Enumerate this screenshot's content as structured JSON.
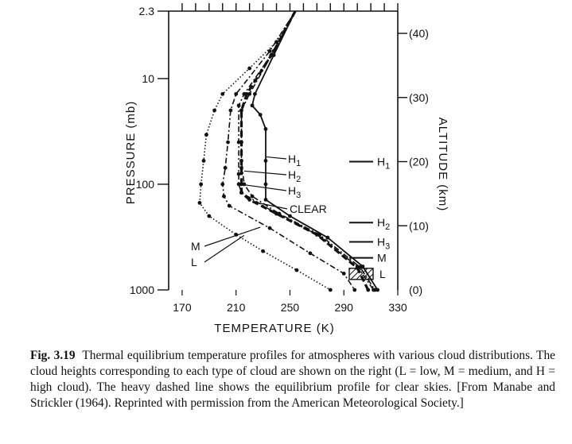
{
  "chart_data": {
    "type": "line",
    "xlabel": "TEMPERATURE (K)",
    "ylabel_left": "PRESSURE (mb)",
    "ylabel_right": "ALTITUDE (km)",
    "x_ticks": [
      "170",
      "210",
      "250",
      "290",
      "330"
    ],
    "y_left_ticks": [
      "2.3",
      "10",
      "100",
      "1000"
    ],
    "y_right_ticks": [
      "(40)",
      "(30)",
      "(20)",
      "(10)",
      "(0)"
    ],
    "xlim": [
      160,
      330
    ],
    "ylim_pressure_mb": [
      2.3,
      1000
    ],
    "y_scale": "log",
    "grid": false,
    "series": [
      {
        "name": "L",
        "style": "dotted",
        "points": [
          [
            254,
            2.3
          ],
          [
            240,
            4.5
          ],
          [
            220,
            8
          ],
          [
            200,
            14
          ],
          [
            194,
            20
          ],
          [
            188,
            34
          ],
          [
            186,
            60
          ],
          [
            184,
            100
          ],
          [
            183,
            150
          ],
          [
            190,
            200
          ],
          [
            210,
            300
          ],
          [
            230,
            430
          ],
          [
            255,
            650
          ],
          [
            280,
            1000
          ]
        ]
      },
      {
        "name": "M",
        "style": "dash-dot",
        "points": [
          [
            254,
            2.3
          ],
          [
            235,
            5.5
          ],
          [
            210,
            14
          ],
          [
            206,
            20
          ],
          [
            204,
            40
          ],
          [
            202,
            70
          ],
          [
            200,
            100
          ],
          [
            201,
            130
          ],
          [
            205,
            160
          ],
          [
            235,
            260
          ],
          [
            265,
            450
          ],
          [
            290,
            700
          ],
          [
            298,
            1000
          ]
        ]
      },
      {
        "name": "CLEAR",
        "style": "heavy-dashed",
        "points": [
          [
            254,
            2.3
          ],
          [
            238,
            5.5
          ],
          [
            218,
            14
          ],
          [
            214,
            20
          ],
          [
            214,
            40
          ],
          [
            214,
            70
          ],
          [
            214,
            100
          ],
          [
            214,
            120
          ],
          [
            220,
            140
          ],
          [
            240,
            190
          ],
          [
            270,
            300
          ],
          [
            300,
            620
          ],
          [
            308,
            1000
          ]
        ]
      },
      {
        "name": "H3",
        "style": "dash-dot",
        "points": [
          [
            254,
            2.3
          ],
          [
            236,
            6
          ],
          [
            216,
            14
          ],
          [
            212,
            18
          ],
          [
            212,
            40
          ],
          [
            212,
            80
          ],
          [
            212,
            100
          ],
          [
            214,
            120
          ],
          [
            240,
            190
          ],
          [
            270,
            300
          ],
          [
            300,
            600
          ],
          [
            312,
            1000
          ]
        ]
      },
      {
        "name": "H2",
        "style": "dash-dot",
        "points": [
          [
            254,
            2.3
          ],
          [
            238,
            5.5
          ],
          [
            220,
            14
          ],
          [
            214,
            20
          ],
          [
            214,
            60
          ],
          [
            216,
            100
          ],
          [
            222,
            130
          ],
          [
            242,
            190
          ],
          [
            272,
            300
          ],
          [
            302,
            610
          ],
          [
            313,
            1000
          ]
        ]
      },
      {
        "name": "H1",
        "style": "solid",
        "points": [
          [
            254,
            2.3
          ],
          [
            238,
            6
          ],
          [
            224,
            14
          ],
          [
            222,
            18
          ],
          [
            228,
            22
          ],
          [
            232,
            30
          ],
          [
            232,
            60
          ],
          [
            232,
            100
          ],
          [
            232,
            140
          ],
          [
            250,
            200
          ],
          [
            278,
            320
          ],
          [
            304,
            600
          ],
          [
            315,
            1000
          ]
        ]
      }
    ],
    "annotations": [
      "H1",
      "H2",
      "H3",
      "CLEAR",
      "M",
      "L"
    ],
    "cloud_legend": [
      {
        "label": "H1",
        "altitude_km": 20
      },
      {
        "label": "H2",
        "altitude_km": 10.5
      },
      {
        "label": "H3",
        "altitude_km": 7.5
      },
      {
        "label": "M",
        "altitude_km": 5
      },
      {
        "label": "L",
        "altitude_km": 2.5,
        "hatched": true
      }
    ]
  },
  "caption": {
    "label": "Fig. 3.19",
    "text": "Thermal equilibrium temperature profiles for atmospheres with various cloud distributions. The cloud heights corresponding to each type of cloud are shown on the right (L = low, M = medium, and H = high cloud). The heavy dashed line shows the equilibrium profile for clear skies. [From Manabe and Strickler (1964). Reprinted with permission from the American Meteorological Society.]"
  }
}
